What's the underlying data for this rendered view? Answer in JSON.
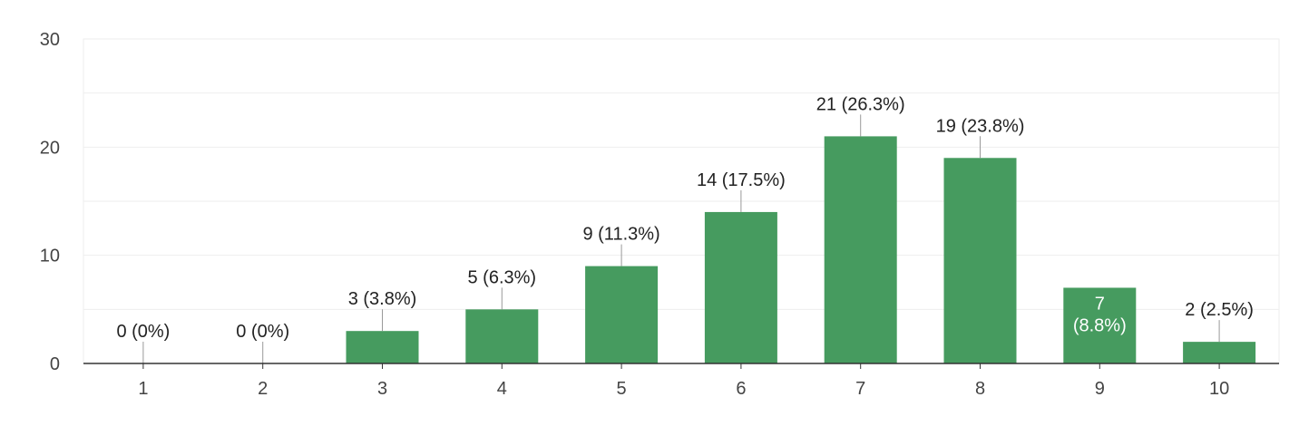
{
  "chart_data": {
    "type": "bar",
    "categories": [
      "1",
      "2",
      "3",
      "4",
      "5",
      "6",
      "7",
      "8",
      "9",
      "10"
    ],
    "values": [
      0,
      0,
      3,
      5,
      9,
      14,
      21,
      19,
      7,
      2
    ],
    "labels": [
      "0 (0%)",
      "0 (0%)",
      "3 (3.8%)",
      "5 (6.3%)",
      "9 (11.3%)",
      "14 (17.5%)",
      "21 (26.3%)",
      "19 (23.8%)",
      "7 (8.8%)",
      "2 (2.5%)"
    ],
    "y_ticks": [
      "0",
      "10",
      "20",
      "30"
    ],
    "ylim": [
      0,
      30
    ],
    "grid": true,
    "legend": "none",
    "bar_color": "#469b5f",
    "grid_color": "#eeeeee",
    "axis_color": "#333333",
    "leader_color": "#999999"
  }
}
